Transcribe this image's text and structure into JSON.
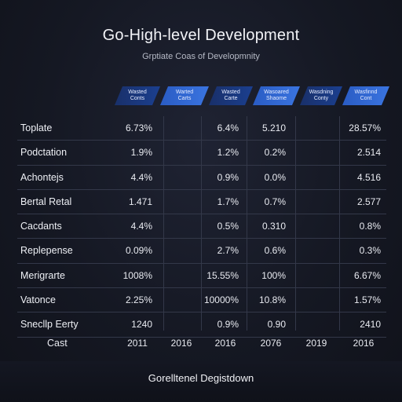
{
  "chart_data": {
    "type": "table",
    "title": "Go-High-level Development",
    "subtitle": "Grptiate Coas of Developmnity",
    "column_headers": [
      "Wasted Conts",
      "Warted Carts",
      "Wasted Carte",
      "Wasoared Shaome",
      "Wasdning Conty",
      "Wasfinnd Cont"
    ],
    "rows": [
      {
        "label": "Toplate",
        "values": [
          "6.73%",
          "",
          "6.4%",
          "5.210",
          "",
          "28.57%"
        ]
      },
      {
        "label": "Podctation",
        "values": [
          "1.9%",
          "",
          "1.2%",
          "0.2%",
          "",
          "2.514"
        ]
      },
      {
        "label": "Achontejs",
        "values": [
          "4.4%",
          "",
          "0.9%",
          "0.0%",
          "",
          "4.516"
        ]
      },
      {
        "label": "Bertal Retal",
        "values": [
          "1.471",
          "",
          "1.7%",
          "0.7%",
          "",
          "2.577"
        ]
      },
      {
        "label": "Cacdants",
        "values": [
          "4.4%",
          "",
          "0.5%",
          "0.310",
          "",
          "0.8%"
        ]
      },
      {
        "label": "Replepense",
        "values": [
          "0.09%",
          "",
          "2.7%",
          "0.6%",
          "",
          "0.3%"
        ]
      },
      {
        "label": "Merigrarte",
        "values": [
          "1008%",
          "",
          "15.55%",
          "100%",
          "",
          "6.67%"
        ]
      },
      {
        "label": "Vatonce",
        "values": [
          "2.25%",
          "",
          "10000%",
          "10.8%",
          "",
          "1.57%"
        ]
      },
      {
        "label": "Snecllp Eerty",
        "values": [
          "1240",
          "",
          "0.9%",
          "0.90",
          "",
          "2410"
        ]
      }
    ],
    "footer": {
      "label": "Cast",
      "values": [
        "2011",
        "2016",
        "2016",
        "2076",
        "2019",
        "2016"
      ]
    },
    "caption": "Gorelltenel Degistdown"
  },
  "colors": {
    "background": "#151823",
    "header_dark": "#1b3f8f",
    "header_light": "#3a74e0",
    "grid": "#333849"
  }
}
